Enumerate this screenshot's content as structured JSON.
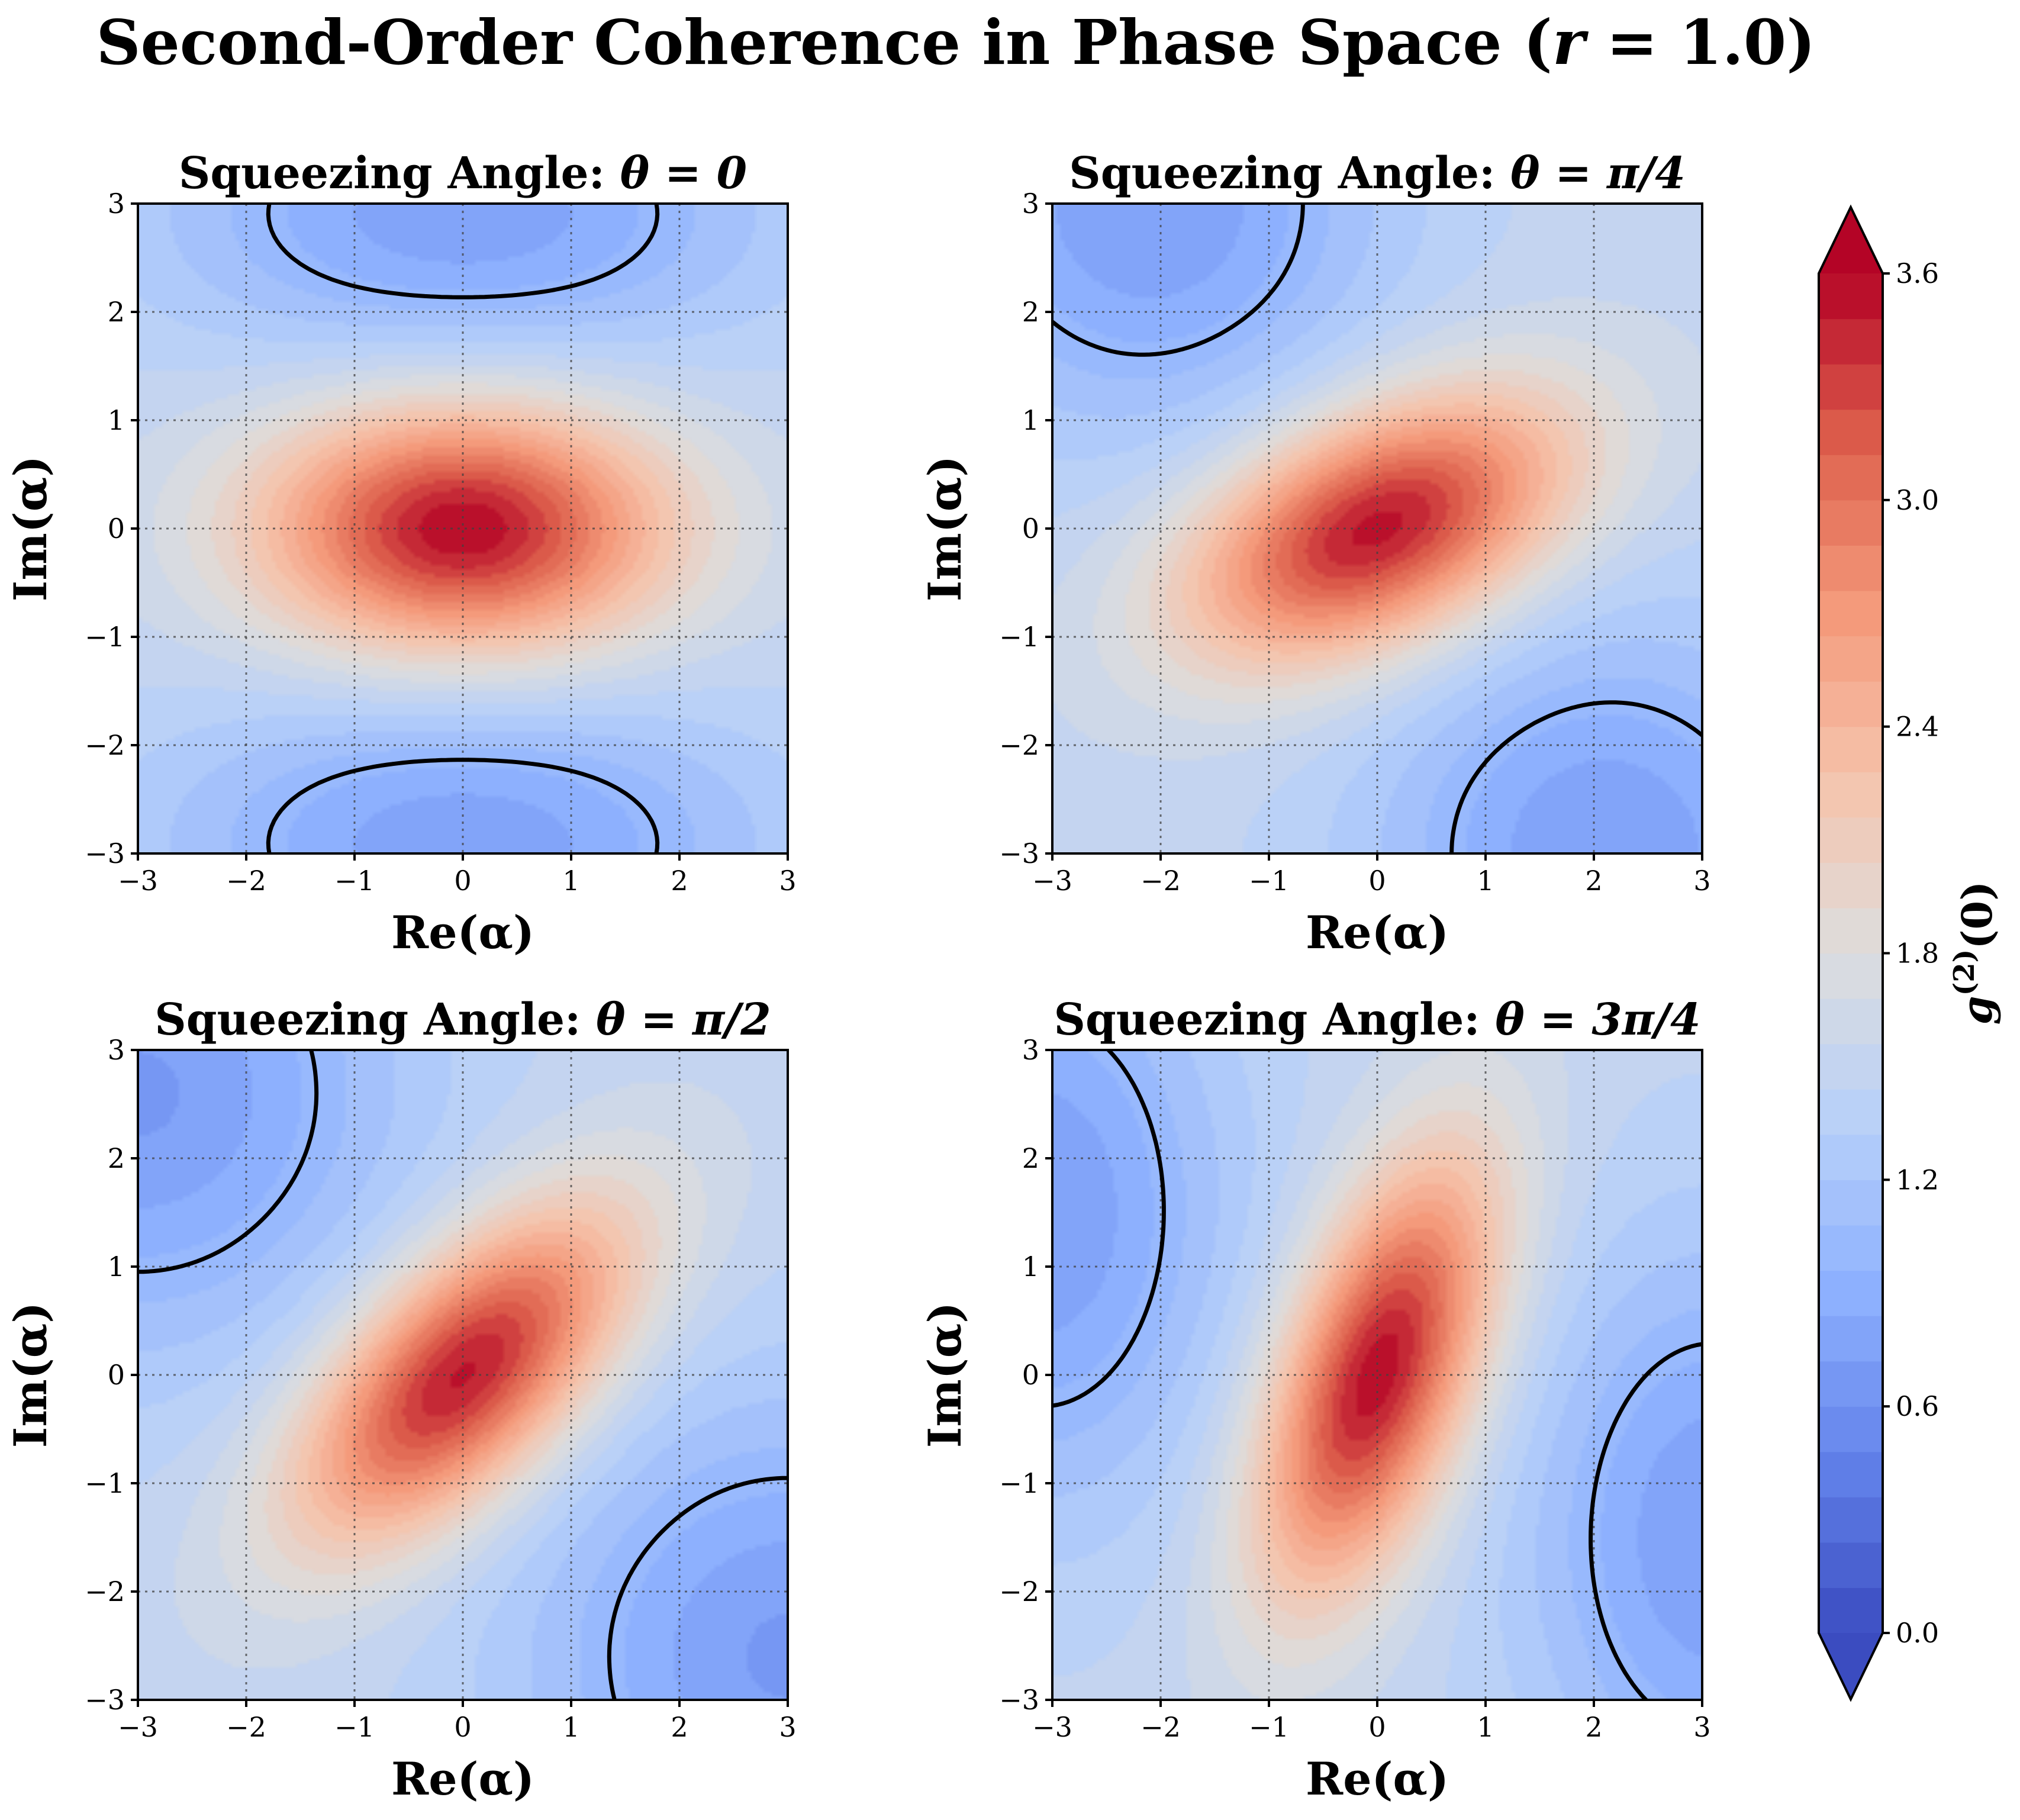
{
  "chart_data": {
    "type": "heatmap",
    "title_parts": {
      "text": "Second-Order Coherence in Phase Space (",
      "var": "r",
      "eq": " = 1.0)"
    },
    "title": "Second-Order Coherence in Phase Space (r = 1.0)",
    "squeeze_r": 1.0,
    "xlabel": "Re(α)",
    "ylabel": "Im(α)",
    "xlim": [
      -3,
      3
    ],
    "ylim": [
      -3,
      3
    ],
    "xticks": [
      -3,
      -2,
      -1,
      0,
      1,
      2,
      3
    ],
    "yticks": [
      -3,
      -2,
      -1,
      0,
      1,
      2,
      3
    ],
    "tick_labels": [
      "−3",
      "−2",
      "−1",
      "0",
      "1",
      "2",
      "3"
    ],
    "grid": true,
    "contour_line_level": 1.0,
    "panels": [
      {
        "title_prefix": "Squeezing Angle: ",
        "title_math": "θ = 0",
        "theta_deg": 0,
        "peak": 3.6,
        "elong_angle_deg": 0,
        "len": 1.3,
        "wid": 0.8,
        "baseline": 1.5,
        "lobes": [
          {
            "x": 0,
            "y": 2.9,
            "sx": 2.0,
            "sy": 1.0,
            "amp": 0.75
          },
          {
            "x": 0,
            "y": -2.9,
            "sx": 2.0,
            "sy": 1.0,
            "amp": 0.75
          }
        ]
      },
      {
        "title_prefix": "Squeezing Angle: ",
        "title_math": "θ = π/4",
        "theta_deg": 45,
        "peak": 3.6,
        "elong_angle_deg": 25,
        "len": 1.3,
        "wid": 0.72,
        "baseline": 1.5,
        "lobes": [
          {
            "x": -2.1,
            "y": 3.0,
            "sx": 1.5,
            "sy": 1.5,
            "amp": 0.78
          },
          {
            "x": 2.1,
            "y": -3.0,
            "sx": 1.5,
            "sy": 1.5,
            "amp": 0.78
          }
        ]
      },
      {
        "title_prefix": "Squeezing Angle: ",
        "title_math": "θ = π/2",
        "theta_deg": 90,
        "peak": 3.6,
        "elong_angle_deg": 45,
        "len": 1.35,
        "wid": 0.66,
        "baseline": 1.5,
        "lobes": [
          {
            "x": -3.0,
            "y": 2.6,
            "sx": 1.7,
            "sy": 1.7,
            "amp": 0.8
          },
          {
            "x": 3.0,
            "y": -2.6,
            "sx": 1.7,
            "sy": 1.7,
            "amp": 0.8
          }
        ]
      },
      {
        "title_prefix": "Squeezing Angle: ",
        "title_math": "θ = 3π/4",
        "theta_deg": 135,
        "peak": 3.6,
        "elong_angle_deg": 70,
        "len": 1.45,
        "wid": 0.6,
        "baseline": 1.5,
        "lobes": [
          {
            "x": -3.1,
            "y": 1.5,
            "sx": 1.2,
            "sy": 1.9,
            "amp": 0.78
          },
          {
            "x": 3.1,
            "y": -1.5,
            "sx": 1.2,
            "sy": 1.9,
            "amp": 0.78
          }
        ]
      }
    ],
    "colorbar": {
      "label_base": "g",
      "label_sup": "(2)",
      "label_arg": "(0)",
      "label": "g(2)(0)",
      "colormap": "coolwarm",
      "vmin": 0.0,
      "vmax": 3.6,
      "levels": 30,
      "extend": "both",
      "ticks": [
        0.0,
        0.6,
        1.2,
        1.8,
        2.4,
        3.0,
        3.6
      ],
      "tick_labels": [
        "0.0",
        "0.6",
        "1.2",
        "1.8",
        "2.4",
        "3.0",
        "3.6"
      ]
    }
  }
}
